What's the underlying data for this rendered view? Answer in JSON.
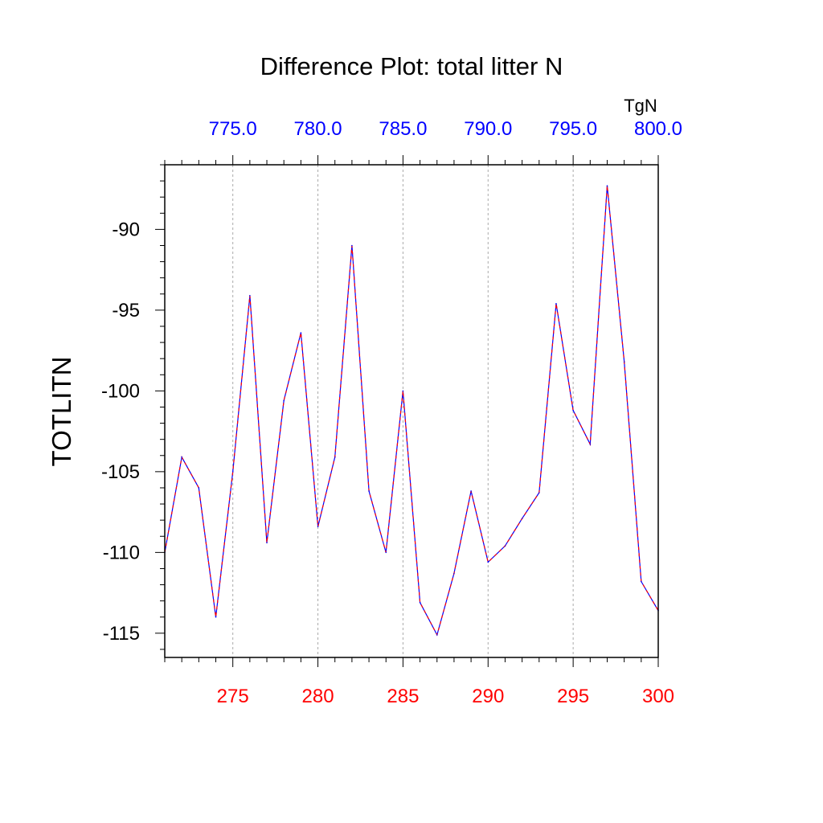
{
  "chart_data": {
    "type": "line",
    "title": "Difference Plot: total litter N",
    "ylabel": "TOTLITN",
    "top_axis_unit": "TgN",
    "xlim": [
      271,
      300
    ],
    "ylim": [
      -116.5,
      -86
    ],
    "top_xlim": [
      771.0,
      800.0
    ],
    "x_ticks": [
      275,
      280,
      285,
      290,
      295,
      300
    ],
    "x_tick_labels": [
      "275",
      "280",
      "285",
      "290",
      "295",
      "300"
    ],
    "top_x_ticks": [
      775.0,
      780.0,
      785.0,
      790.0,
      795.0,
      800.0
    ],
    "top_x_tick_labels": [
      "775.0",
      "780.0",
      "785.0",
      "790.0",
      "795.0",
      "800.0"
    ],
    "y_ticks": [
      -90,
      -95,
      -100,
      -105,
      -110,
      -115
    ],
    "y_tick_labels": [
      "-90",
      "-95",
      "-100",
      "-105",
      "-110",
      "-115"
    ],
    "grid": "vertical dashed at major ticks",
    "colors": {
      "line_a": "#0000ff",
      "line_b": "#ff0000",
      "bottom_ticks": "#ff0000",
      "top_ticks": "#0000ff",
      "grid": "#aaaaaa"
    },
    "x": [
      271,
      272,
      273,
      274,
      275,
      276,
      277,
      278,
      279,
      280,
      281,
      282,
      283,
      284,
      285,
      286,
      287,
      288,
      289,
      290,
      291,
      292,
      293,
      294,
      295,
      296,
      297,
      298,
      299,
      300
    ],
    "values": [
      -110.0,
      -104.1,
      -106.0,
      -114.0,
      -105.0,
      -94.1,
      -109.4,
      -100.6,
      -96.4,
      -108.4,
      -104.1,
      -91.0,
      -106.2,
      -110.0,
      -100.0,
      -113.1,
      -115.1,
      -111.3,
      -106.2,
      -110.6,
      -109.6,
      -107.9,
      -106.3,
      -94.6,
      -101.2,
      -103.3,
      -87.3,
      -98.2,
      -111.8,
      -113.6
    ]
  }
}
